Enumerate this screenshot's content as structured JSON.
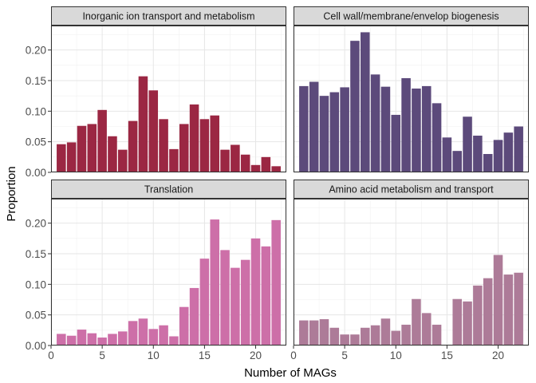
{
  "chart_data": {
    "type": "bar",
    "layout": "facet-grid-2x2",
    "xlabel": "Number of MAGs",
    "ylabel": "Proportion",
    "xlim": [
      0,
      23
    ],
    "ylim": [
      0,
      0.24
    ],
    "x_ticks": [
      0,
      5,
      10,
      15,
      20
    ],
    "y_ticks": [
      0.0,
      0.05,
      0.1,
      0.15,
      0.2
    ],
    "y_tick_labels": [
      "0.00",
      "0.05",
      "0.10",
      "0.15",
      "0.20"
    ],
    "x_tick_labels": [
      "0",
      "5",
      "10",
      "15",
      "20"
    ],
    "grid": true,
    "x": [
      1,
      2,
      3,
      4,
      5,
      6,
      7,
      8,
      9,
      10,
      11,
      12,
      13,
      14,
      15,
      16,
      17,
      18,
      19,
      20,
      21,
      22
    ],
    "facets": [
      {
        "title": "Inorganic ion transport and metabolism",
        "color": "#9b2743",
        "values": [
          0.046,
          0.049,
          0.076,
          0.079,
          0.102,
          0.059,
          0.037,
          0.084,
          0.157,
          0.134,
          0.087,
          0.038,
          0.079,
          0.111,
          0.087,
          0.093,
          0.037,
          0.045,
          0.029,
          0.012,
          0.025,
          0.01
        ]
      },
      {
        "title": "Cell wall/membrane/envelop biogenesis",
        "color": "#5c4a7b",
        "values": [
          0.141,
          0.148,
          0.125,
          0.131,
          0.139,
          0.215,
          0.229,
          0.16,
          0.14,
          0.094,
          0.154,
          0.137,
          0.141,
          0.113,
          0.057,
          0.035,
          0.091,
          0.06,
          0.03,
          0.053,
          0.065,
          0.075
        ]
      },
      {
        "title": "Translation",
        "color": "#cd6fa8",
        "values": [
          0.019,
          0.016,
          0.026,
          0.02,
          0.013,
          0.019,
          0.023,
          0.04,
          0.044,
          0.027,
          0.033,
          0.015,
          0.063,
          0.094,
          0.142,
          0.206,
          0.156,
          0.127,
          0.14,
          0.175,
          0.162,
          0.205
        ]
      },
      {
        "title": "Amino acid metabolism and transport",
        "color": "#ad7b98",
        "values": [
          0.041,
          0.041,
          0.043,
          0.029,
          0.018,
          0.018,
          0.029,
          0.033,
          0.044,
          0.024,
          0.034,
          0.076,
          0.053,
          0.034,
          0.0,
          0.076,
          0.072,
          0.098,
          0.11,
          0.148,
          0.116,
          0.119
        ]
      }
    ]
  }
}
